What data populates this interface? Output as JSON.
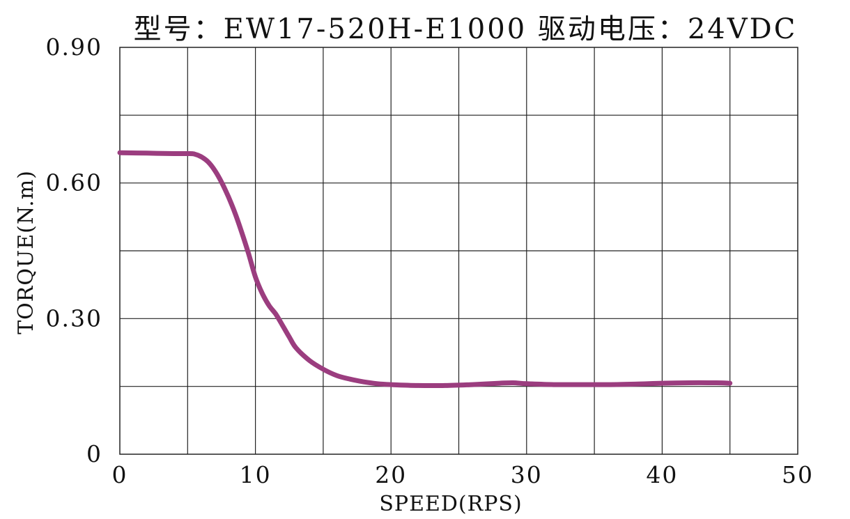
{
  "chart_data": {
    "type": "line",
    "title": "型号：EW17-520H-E1000   驱动电压：24VDC",
    "xlabel": "SPEED(RPS)",
    "ylabel": "TORQUE(N.m)",
    "xlim": [
      0,
      50
    ],
    "ylim": [
      0,
      0.9
    ],
    "x_grid_step": 5,
    "y_grid_step": 0.15,
    "x_tick_labels": [
      "0",
      "10",
      "20",
      "30",
      "40",
      "50"
    ],
    "x_tick_values": [
      0,
      10,
      20,
      30,
      40,
      50
    ],
    "y_tick_labels": [
      "0",
      "0.30",
      "0.60",
      "0.90"
    ],
    "y_tick_values": [
      0,
      0.3,
      0.6,
      0.9
    ],
    "grid": true,
    "colors": {
      "curve": "#9b3d7f",
      "grid": "#222222",
      "text": "#111111"
    },
    "series": [
      {
        "x": [
          0,
          2,
          4,
          5,
          5.5,
          6,
          6.5,
          7,
          7.5,
          8,
          8.5,
          9,
          9.5,
          10,
          10.5,
          11,
          11.5,
          12,
          12.5,
          13,
          14,
          15,
          16,
          17,
          18,
          19,
          20,
          22,
          24,
          26,
          28,
          29,
          30,
          32,
          34,
          36,
          38,
          40,
          42,
          44,
          45
        ],
        "values": [
          0.667,
          0.666,
          0.665,
          0.665,
          0.664,
          0.658,
          0.647,
          0.628,
          0.602,
          0.57,
          0.533,
          0.49,
          0.443,
          0.392,
          0.356,
          0.329,
          0.31,
          0.285,
          0.259,
          0.235,
          0.207,
          0.188,
          0.174,
          0.166,
          0.16,
          0.156,
          0.154,
          0.152,
          0.152,
          0.154,
          0.157,
          0.158,
          0.156,
          0.154,
          0.154,
          0.154,
          0.155,
          0.157,
          0.158,
          0.158,
          0.157
        ]
      }
    ]
  }
}
